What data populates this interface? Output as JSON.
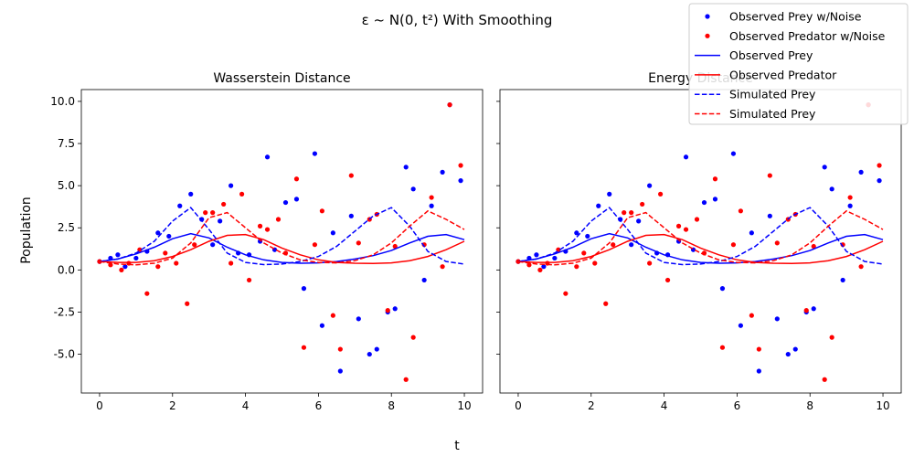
{
  "figure": {
    "suptitle": "ε ~ N(0, t²) With Smoothing",
    "xlabel": "t",
    "ylabel": "Population"
  },
  "colors": {
    "prey": "#0000ff",
    "predator": "#ff0000"
  },
  "legend": {
    "placement": "top-right",
    "entries": [
      {
        "label": "Observed Prey w/Noise",
        "kind": "scatter",
        "color": "#0000ff"
      },
      {
        "label": "Observed Predator w/Noise",
        "kind": "scatter",
        "color": "#ff0000"
      },
      {
        "label": "Observed Prey",
        "kind": "line",
        "color": "#0000ff"
      },
      {
        "label": "Observed Predator",
        "kind": "line",
        "color": "#ff0000"
      },
      {
        "label": "Simulated Prey",
        "kind": "dashed",
        "color": "#0000ff"
      },
      {
        "label": "Simulated Prey",
        "kind": "dashed",
        "color": "#ff0000"
      }
    ]
  },
  "chart_data": [
    {
      "type": "scatter+line",
      "title": "Wasserstein Distance",
      "xlim": [
        -0.5,
        10.5
      ],
      "ylim": [
        -7.3,
        10.7
      ],
      "xticks": [
        0,
        2,
        4,
        6,
        8,
        10
      ],
      "yticks": [
        -5.0,
        -2.5,
        0.0,
        2.5,
        5.0,
        7.5,
        10.0
      ],
      "series": [
        {
          "name": "Observed Prey w/Noise",
          "kind": "scatter",
          "color": "#0000ff",
          "x": [
            0,
            0.3,
            0.5,
            0.7,
            1.0,
            1.3,
            1.6,
            1.9,
            2.2,
            2.5,
            2.8,
            3.1,
            3.3,
            3.6,
            3.8,
            4.1,
            4.4,
            4.6,
            4.8,
            5.1,
            5.4,
            5.6,
            5.9,
            6.1,
            6.4,
            6.6,
            6.9,
            7.1,
            7.4,
            7.6,
            7.9,
            8.1,
            8.4,
            8.6,
            8.9,
            9.1,
            9.4,
            9.6,
            9.9
          ],
          "y": [
            0.5,
            0.7,
            0.9,
            0.2,
            0.7,
            1.1,
            2.2,
            2.0,
            3.8,
            4.5,
            3.0,
            1.5,
            2.9,
            5.0,
            1.0,
            0.9,
            1.7,
            6.7,
            1.2,
            4.0,
            4.2,
            -1.1,
            6.9,
            -3.3,
            2.2,
            -6.0,
            3.2,
            -2.9,
            -5.0,
            -4.7,
            -2.5,
            -2.3,
            6.1,
            4.8,
            -0.6,
            3.8,
            5.8,
            9.8,
            5.3
          ]
        },
        {
          "name": "Observed Predator w/Noise",
          "kind": "scatter",
          "color": "#ff0000",
          "x": [
            0,
            0.3,
            0.6,
            0.8,
            1.1,
            1.3,
            1.6,
            1.8,
            2.1,
            2.4,
            2.6,
            2.9,
            3.1,
            3.4,
            3.6,
            3.9,
            4.1,
            4.4,
            4.6,
            4.9,
            5.1,
            5.4,
            5.6,
            5.9,
            6.1,
            6.4,
            6.6,
            6.9,
            7.1,
            7.4,
            7.6,
            7.9,
            8.1,
            8.4,
            8.6,
            8.9,
            9.1,
            9.4,
            9.6,
            9.9
          ],
          "y": [
            0.5,
            0.3,
            0.0,
            0.4,
            1.2,
            -1.4,
            0.2,
            1.0,
            0.4,
            -2.0,
            1.5,
            3.4,
            3.4,
            3.9,
            0.4,
            4.5,
            -0.6,
            2.6,
            2.4,
            3.0,
            1.0,
            5.4,
            -4.6,
            1.5,
            3.5,
            -2.7,
            -4.7,
            5.6,
            1.6,
            3.0,
            3.3,
            -2.4,
            1.4,
            -6.5,
            -4.0,
            1.5,
            4.3,
            0.2,
            9.8,
            6.2
          ]
        },
        {
          "name": "Observed Prey",
          "kind": "line",
          "color": "#0000ff",
          "x": [
            0,
            0.5,
            1,
            1.5,
            2,
            2.5,
            3,
            3.5,
            4,
            4.5,
            5,
            5.5,
            6,
            6.5,
            7,
            7.5,
            8,
            8.5,
            9,
            9.5,
            10
          ],
          "y": [
            0.5,
            0.65,
            0.95,
            1.35,
            1.85,
            2.15,
            1.9,
            1.35,
            0.9,
            0.6,
            0.45,
            0.4,
            0.42,
            0.5,
            0.65,
            0.85,
            1.15,
            1.6,
            2.0,
            2.1,
            1.8
          ]
        },
        {
          "name": "Observed Predator",
          "kind": "line",
          "color": "#ff0000",
          "x": [
            0,
            0.5,
            1,
            1.5,
            2,
            2.5,
            3,
            3.5,
            4,
            4.5,
            5,
            5.5,
            6,
            6.5,
            7,
            7.5,
            8,
            8.5,
            9,
            9.5,
            10
          ],
          "y": [
            0.5,
            0.45,
            0.45,
            0.55,
            0.8,
            1.2,
            1.7,
            2.05,
            2.1,
            1.8,
            1.3,
            0.9,
            0.6,
            0.45,
            0.4,
            0.38,
            0.42,
            0.55,
            0.8,
            1.2,
            1.7
          ]
        },
        {
          "name": "Simulated Prey",
          "kind": "dashed",
          "color": "#0000ff",
          "x": [
            0,
            0.5,
            1,
            1.5,
            2,
            2.5,
            3,
            3.5,
            4,
            4.5,
            5,
            5.5,
            6,
            6.5,
            7,
            7.5,
            8,
            8.5,
            9,
            9.5,
            10
          ],
          "y": [
            0.5,
            0.65,
            1.0,
            1.7,
            2.9,
            3.7,
            2.4,
            1.0,
            0.45,
            0.32,
            0.35,
            0.5,
            0.8,
            1.4,
            2.3,
            3.2,
            3.7,
            2.6,
            1.1,
            0.5,
            0.35
          ]
        },
        {
          "name": "Simulated Prey",
          "kind": "dashed",
          "color": "#ff0000",
          "x": [
            0,
            0.5,
            1,
            1.5,
            2,
            2.5,
            3,
            3.5,
            4,
            4.5,
            5,
            5.5,
            6,
            6.5,
            7,
            7.5,
            8,
            8.5,
            9,
            9.5,
            10
          ],
          "y": [
            0.5,
            0.35,
            0.3,
            0.4,
            0.7,
            1.6,
            3.1,
            3.4,
            2.5,
            1.6,
            1.0,
            0.6,
            0.45,
            0.42,
            0.55,
            0.9,
            1.6,
            2.6,
            3.5,
            3.0,
            2.4
          ]
        }
      ]
    },
    {
      "type": "scatter+line",
      "title": "Energy Distance",
      "xlim": [
        -0.5,
        10.5
      ],
      "ylim": [
        -7.3,
        10.7
      ],
      "xticks": [
        0,
        2,
        4,
        6,
        8,
        10
      ],
      "yticks": [
        -5.0,
        -2.5,
        0.0,
        2.5,
        5.0,
        7.5,
        10.0
      ],
      "series": [
        {
          "name": "Observed Prey w/Noise",
          "kind": "scatter",
          "color": "#0000ff",
          "x": [
            0,
            0.3,
            0.5,
            0.7,
            1.0,
            1.3,
            1.6,
            1.9,
            2.2,
            2.5,
            2.8,
            3.1,
            3.3,
            3.6,
            3.8,
            4.1,
            4.4,
            4.6,
            4.8,
            5.1,
            5.4,
            5.6,
            5.9,
            6.1,
            6.4,
            6.6,
            6.9,
            7.1,
            7.4,
            7.6,
            7.9,
            8.1,
            8.4,
            8.6,
            8.9,
            9.1,
            9.4,
            9.6,
            9.9
          ],
          "y": [
            0.5,
            0.7,
            0.9,
            0.2,
            0.7,
            1.1,
            2.2,
            2.0,
            3.8,
            4.5,
            3.0,
            1.5,
            2.9,
            5.0,
            1.0,
            0.9,
            1.7,
            6.7,
            1.2,
            4.0,
            4.2,
            -1.1,
            6.9,
            -3.3,
            2.2,
            -6.0,
            3.2,
            -2.9,
            -5.0,
            -4.7,
            -2.5,
            -2.3,
            6.1,
            4.8,
            -0.6,
            3.8,
            5.8,
            9.8,
            5.3
          ]
        },
        {
          "name": "Observed Predator w/Noise",
          "kind": "scatter",
          "color": "#ff0000",
          "x": [
            0,
            0.3,
            0.6,
            0.8,
            1.1,
            1.3,
            1.6,
            1.8,
            2.1,
            2.4,
            2.6,
            2.9,
            3.1,
            3.4,
            3.6,
            3.9,
            4.1,
            4.4,
            4.6,
            4.9,
            5.1,
            5.4,
            5.6,
            5.9,
            6.1,
            6.4,
            6.6,
            6.9,
            7.1,
            7.4,
            7.6,
            7.9,
            8.1,
            8.4,
            8.6,
            8.9,
            9.1,
            9.4,
            9.6,
            9.9
          ],
          "y": [
            0.5,
            0.3,
            0.0,
            0.4,
            1.2,
            -1.4,
            0.2,
            1.0,
            0.4,
            -2.0,
            1.5,
            3.4,
            3.4,
            3.9,
            0.4,
            4.5,
            -0.6,
            2.6,
            2.4,
            3.0,
            1.0,
            5.4,
            -4.6,
            1.5,
            3.5,
            -2.7,
            -4.7,
            5.6,
            1.6,
            3.0,
            3.3,
            -2.4,
            1.4,
            -6.5,
            -4.0,
            1.5,
            4.3,
            0.2,
            9.8,
            6.2
          ]
        },
        {
          "name": "Observed Prey",
          "kind": "line",
          "color": "#0000ff",
          "x": [
            0,
            0.5,
            1,
            1.5,
            2,
            2.5,
            3,
            3.5,
            4,
            4.5,
            5,
            5.5,
            6,
            6.5,
            7,
            7.5,
            8,
            8.5,
            9,
            9.5,
            10
          ],
          "y": [
            0.5,
            0.65,
            0.95,
            1.35,
            1.85,
            2.15,
            1.9,
            1.35,
            0.9,
            0.6,
            0.45,
            0.4,
            0.42,
            0.5,
            0.65,
            0.85,
            1.15,
            1.6,
            2.0,
            2.1,
            1.8
          ]
        },
        {
          "name": "Observed Predator",
          "kind": "line",
          "color": "#ff0000",
          "x": [
            0,
            0.5,
            1,
            1.5,
            2,
            2.5,
            3,
            3.5,
            4,
            4.5,
            5,
            5.5,
            6,
            6.5,
            7,
            7.5,
            8,
            8.5,
            9,
            9.5,
            10
          ],
          "y": [
            0.5,
            0.45,
            0.45,
            0.55,
            0.8,
            1.2,
            1.7,
            2.05,
            2.1,
            1.8,
            1.3,
            0.9,
            0.6,
            0.45,
            0.4,
            0.38,
            0.42,
            0.55,
            0.8,
            1.2,
            1.7
          ]
        },
        {
          "name": "Simulated Prey",
          "kind": "dashed",
          "color": "#0000ff",
          "x": [
            0,
            0.5,
            1,
            1.5,
            2,
            2.5,
            3,
            3.5,
            4,
            4.5,
            5,
            5.5,
            6,
            6.5,
            7,
            7.5,
            8,
            8.5,
            9,
            9.5,
            10
          ],
          "y": [
            0.5,
            0.65,
            1.0,
            1.7,
            2.9,
            3.7,
            2.4,
            1.0,
            0.45,
            0.32,
            0.35,
            0.5,
            0.8,
            1.4,
            2.3,
            3.2,
            3.7,
            2.6,
            1.1,
            0.5,
            0.35
          ]
        },
        {
          "name": "Simulated Prey",
          "kind": "dashed",
          "color": "#ff0000",
          "x": [
            0,
            0.5,
            1,
            1.5,
            2,
            2.5,
            3,
            3.5,
            4,
            4.5,
            5,
            5.5,
            6,
            6.5,
            7,
            7.5,
            8,
            8.5,
            9,
            9.5,
            10
          ],
          "y": [
            0.5,
            0.35,
            0.3,
            0.4,
            0.7,
            1.6,
            3.1,
            3.4,
            2.5,
            1.6,
            1.0,
            0.6,
            0.45,
            0.42,
            0.55,
            0.9,
            1.6,
            2.6,
            3.5,
            3.0,
            2.4
          ]
        }
      ]
    }
  ]
}
